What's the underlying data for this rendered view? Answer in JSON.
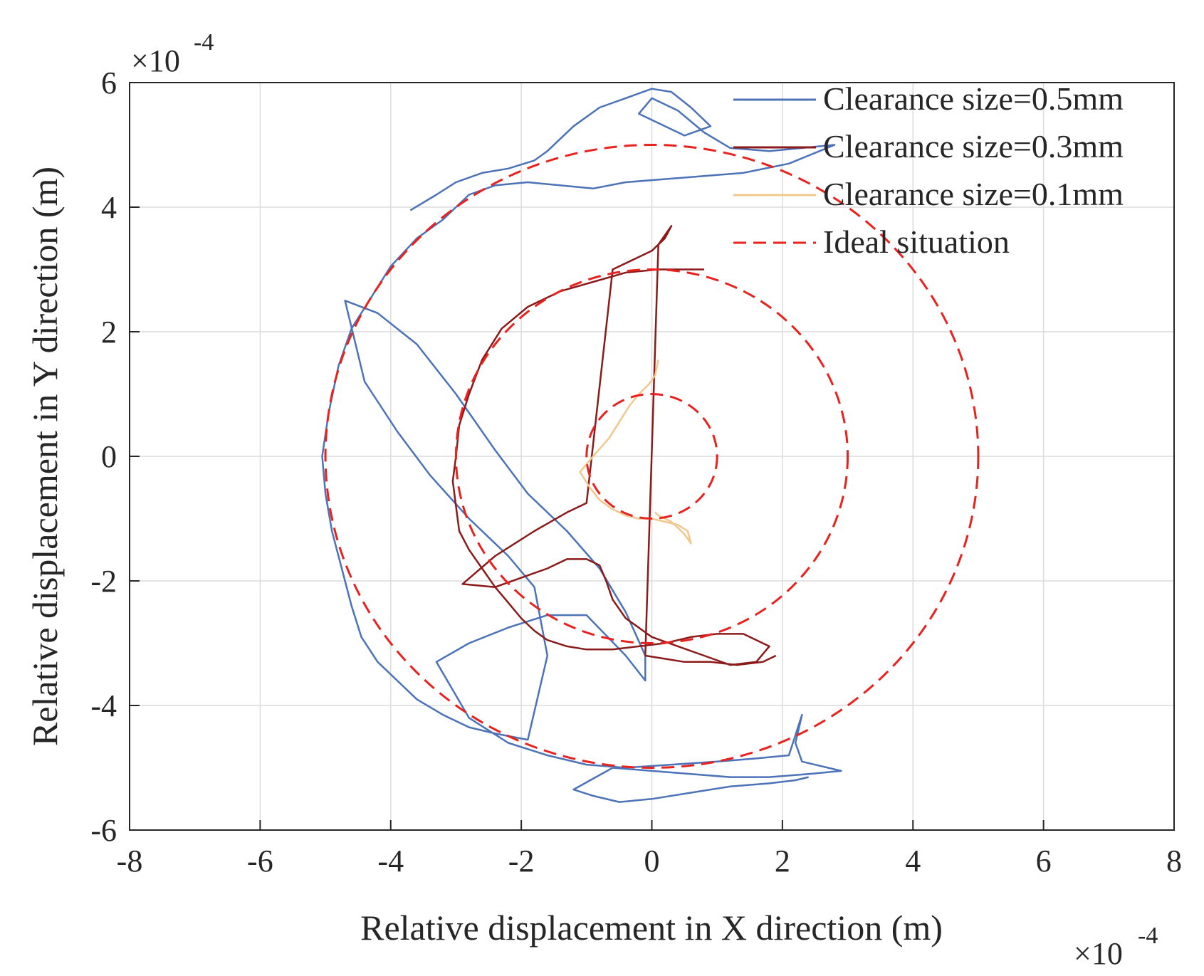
{
  "chart_data": {
    "type": "line",
    "title": "",
    "xlabel": "Relative displacement in X direction (m)",
    "ylabel": "Relative displacement in Y direction (m)",
    "x_multiplier_label": "×10",
    "x_multiplier_exp": "-4",
    "y_multiplier_label": "×10",
    "y_multiplier_exp": "-4",
    "xlim": [
      -8,
      8
    ],
    "ylim": [
      -6,
      6
    ],
    "xticks": [
      "-8",
      "-6",
      "-4",
      "-2",
      "0",
      "2",
      "4",
      "6",
      "8"
    ],
    "yticks": [
      "-6",
      "-4",
      "-2",
      "0",
      "2",
      "4",
      "6"
    ],
    "grid": true,
    "legend_position": "top-right",
    "series": [
      {
        "name": "Clearance size=0.5mm",
        "color": "#4c72b8",
        "style": "solid",
        "x": [
          -3.7,
          -3.3,
          -3.0,
          -2.6,
          -2.2,
          -1.8,
          -1.6,
          -1.2,
          -0.8,
          -0.4,
          0.0,
          0.3,
          0.6,
          0.9,
          0.5,
          0.1,
          -0.2,
          0.0,
          0.4,
          0.8,
          1.2,
          1.8,
          2.3,
          2.8,
          2.1,
          1.4,
          0.8,
          0.2,
          -0.4,
          -0.9,
          -1.4,
          -1.9,
          -2.4,
          -2.8,
          -3.0,
          -3.2,
          -3.6,
          -4.0,
          -4.3,
          -4.6,
          -4.8,
          -4.95,
          -5.05,
          -5.0,
          -4.9,
          -4.75,
          -4.6,
          -4.45,
          -4.2,
          -3.9,
          -3.6,
          -3.2,
          -2.8,
          -2.4,
          -1.9,
          -1.6,
          -1.8,
          -2.2,
          -2.8,
          -3.4,
          -3.9,
          -4.4,
          -4.7,
          -4.2,
          -3.6,
          -3.0,
          -2.4,
          -1.9,
          -1.3,
          -0.8,
          -0.4,
          -0.1,
          -0.1,
          -0.4,
          -1.0,
          -1.6,
          -2.2,
          -2.8,
          -3.3,
          -2.8,
          -2.2,
          -1.6,
          -1.0,
          -0.4,
          0.3,
          1.0,
          1.6,
          2.1,
          2.3,
          2.2,
          2.3,
          2.7,
          2.9,
          2.4,
          1.8,
          1.2,
          0.6,
          0.0,
          -0.6,
          -1.2,
          -0.9,
          -0.5,
          0.0,
          0.6,
          1.2,
          1.8,
          2.2,
          2.4
        ],
        "y": [
          3.95,
          4.2,
          4.4,
          4.55,
          4.62,
          4.75,
          4.9,
          5.3,
          5.6,
          5.75,
          5.9,
          5.85,
          5.6,
          5.3,
          5.15,
          5.35,
          5.5,
          5.75,
          5.55,
          5.2,
          4.95,
          4.9,
          4.95,
          5.0,
          4.7,
          4.55,
          4.5,
          4.45,
          4.4,
          4.3,
          4.35,
          4.4,
          4.35,
          4.2,
          4.0,
          3.8,
          3.5,
          3.05,
          2.55,
          2.05,
          1.45,
          0.7,
          0.0,
          -0.6,
          -1.2,
          -1.8,
          -2.4,
          -2.9,
          -3.3,
          -3.6,
          -3.9,
          -4.15,
          -4.35,
          -4.45,
          -4.55,
          -3.2,
          -2.1,
          -1.6,
          -1.0,
          -0.3,
          0.4,
          1.2,
          2.5,
          2.3,
          1.8,
          1.0,
          0.1,
          -0.6,
          -1.2,
          -1.8,
          -2.5,
          -3.2,
          -3.6,
          -3.2,
          -2.55,
          -2.55,
          -2.75,
          -3.0,
          -3.3,
          -4.2,
          -4.6,
          -4.8,
          -4.95,
          -5.0,
          -4.95,
          -4.9,
          -4.85,
          -4.8,
          -4.15,
          -4.6,
          -4.9,
          -5.0,
          -5.05,
          -5.1,
          -5.15,
          -5.15,
          -5.1,
          -5.05,
          -5.0,
          -5.35,
          -5.45,
          -5.55,
          -5.5,
          -5.4,
          -5.3,
          -5.25,
          -5.2,
          -5.15
        ]
      },
      {
        "name": "Clearance size=0.3mm",
        "color": "#8b1a1a",
        "style": "solid",
        "x": [
          0.8,
          0.5,
          0.1,
          -0.4,
          -0.9,
          -1.4,
          -1.9,
          -2.3,
          -2.6,
          -2.8,
          -2.95,
          -3.0,
          -3.05,
          -3.0,
          -2.95,
          -2.8,
          -2.6,
          -2.4,
          -2.2,
          -2.0,
          -1.8,
          -1.6,
          -1.3,
          -1.0,
          -0.6,
          -0.2,
          0.2,
          0.6,
          1.0,
          1.4,
          1.8,
          1.6,
          1.2,
          0.8,
          0.4,
          0.0,
          -0.4,
          -0.6,
          -0.7,
          -0.8,
          -1.0,
          -1.3,
          -1.6,
          -2.0,
          -2.4,
          -2.9,
          -2.4,
          -1.8,
          -1.3,
          -1.0,
          -0.6,
          -0.2,
          0.0,
          0.2,
          0.3,
          0.1,
          -0.1,
          0.2,
          0.5,
          0.9,
          1.3,
          1.7,
          1.9
        ],
        "y": [
          3.0,
          3.0,
          3.0,
          2.95,
          2.8,
          2.65,
          2.4,
          2.05,
          1.55,
          1.0,
          0.5,
          0.0,
          -0.4,
          -0.8,
          -1.2,
          -1.5,
          -1.8,
          -2.1,
          -2.35,
          -2.6,
          -2.8,
          -2.95,
          -3.05,
          -3.1,
          -3.1,
          -3.05,
          -3.0,
          -2.9,
          -2.85,
          -2.85,
          -3.05,
          -3.3,
          -3.35,
          -3.2,
          -3.05,
          -2.9,
          -2.6,
          -2.3,
          -2.0,
          -1.75,
          -1.65,
          -1.65,
          -1.8,
          -1.95,
          -2.1,
          -2.05,
          -1.6,
          -1.2,
          -0.9,
          -0.75,
          3.0,
          3.2,
          3.3,
          3.5,
          3.7,
          3.4,
          -3.2,
          -3.25,
          -3.3,
          -3.3,
          -3.35,
          -3.3,
          -3.2
        ]
      },
      {
        "name": "Clearance size=0.1mm",
        "color": "#f0c78c",
        "style": "solid",
        "x": [
          0.1,
          0.05,
          -0.05,
          -0.2,
          -0.35,
          -0.5,
          -0.65,
          -0.9,
          -1.1,
          -0.95,
          -0.8,
          -0.6,
          -0.4,
          -0.2,
          0.0,
          0.2,
          0.4,
          0.55,
          0.6,
          0.5,
          0.3,
          0.1,
          0.05
        ],
        "y": [
          1.55,
          1.3,
          1.15,
          1.0,
          0.8,
          0.55,
          0.3,
          0.0,
          -0.25,
          -0.5,
          -0.7,
          -0.85,
          -0.95,
          -1.0,
          -1.0,
          -1.05,
          -1.1,
          -1.2,
          -1.4,
          -1.25,
          -1.05,
          -0.95,
          -0.9
        ]
      },
      {
        "name": "Ideal situation",
        "color": "#e8221f",
        "style": "dashed",
        "circles_radius": [
          5,
          3,
          1
        ]
      }
    ]
  }
}
